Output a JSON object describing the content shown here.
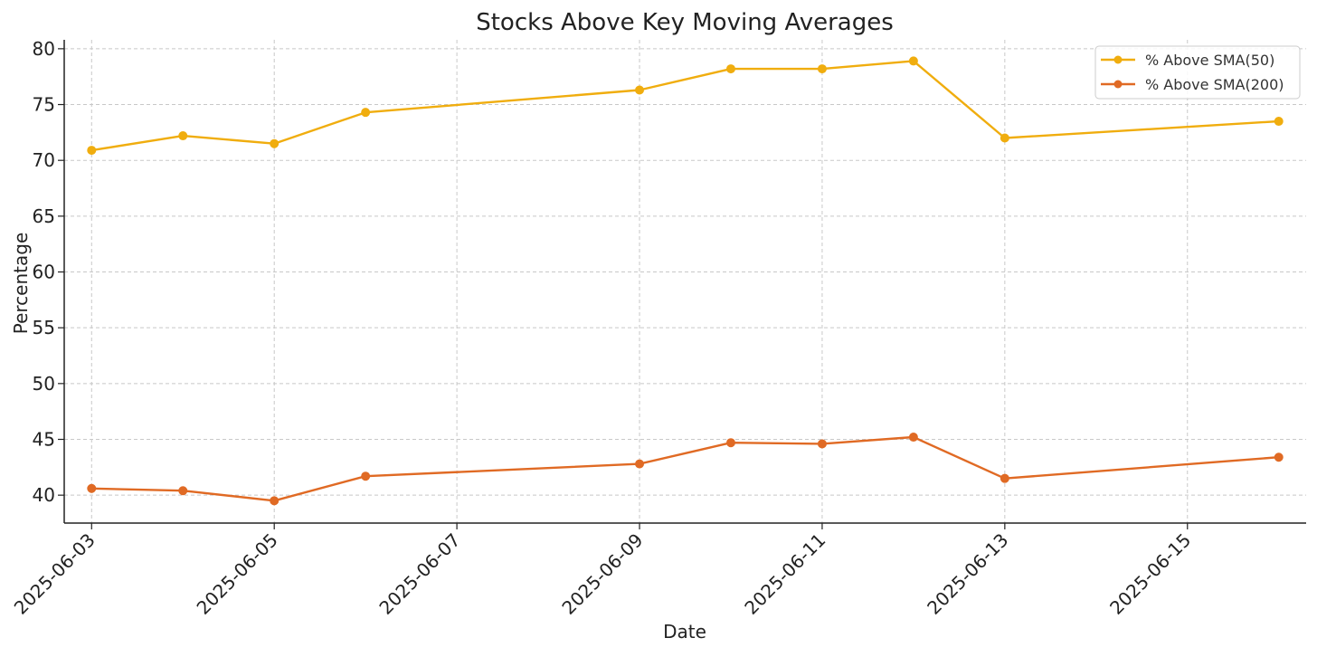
{
  "chart_data": {
    "type": "line",
    "title": "Stocks Above Key Moving Averages",
    "xlabel": "Date",
    "ylabel": "Percentage",
    "x_dates": [
      "2025-06-03",
      "2025-06-04",
      "2025-06-05",
      "2025-06-06",
      "2025-06-09",
      "2025-06-10",
      "2025-06-11",
      "2025-06-12",
      "2025-06-13",
      "2025-06-16"
    ],
    "x_ticks": [
      "2025-06-03",
      "2025-06-05",
      "2025-06-07",
      "2025-06-09",
      "2025-06-11",
      "2025-06-13",
      "2025-06-15"
    ],
    "xlim": [
      "2025-06-02 16:48",
      "2025-06-16 07:12"
    ],
    "y_ticks": [
      40,
      45,
      50,
      55,
      60,
      65,
      70,
      75,
      80
    ],
    "ylim": [
      37.5,
      80.8
    ],
    "grid": true,
    "legend_position": "top-right",
    "series": [
      {
        "name": "% Above SMA(50)",
        "color": "#F0AD0E",
        "values": [
          70.9,
          72.2,
          71.5,
          74.3,
          76.3,
          78.2,
          78.2,
          78.9,
          72.0,
          73.5
        ]
      },
      {
        "name": "% Above SMA(200)",
        "color": "#E06A24",
        "values": [
          40.6,
          40.4,
          39.5,
          41.7,
          42.8,
          44.7,
          44.6,
          45.2,
          41.5,
          43.4
        ]
      }
    ]
  }
}
